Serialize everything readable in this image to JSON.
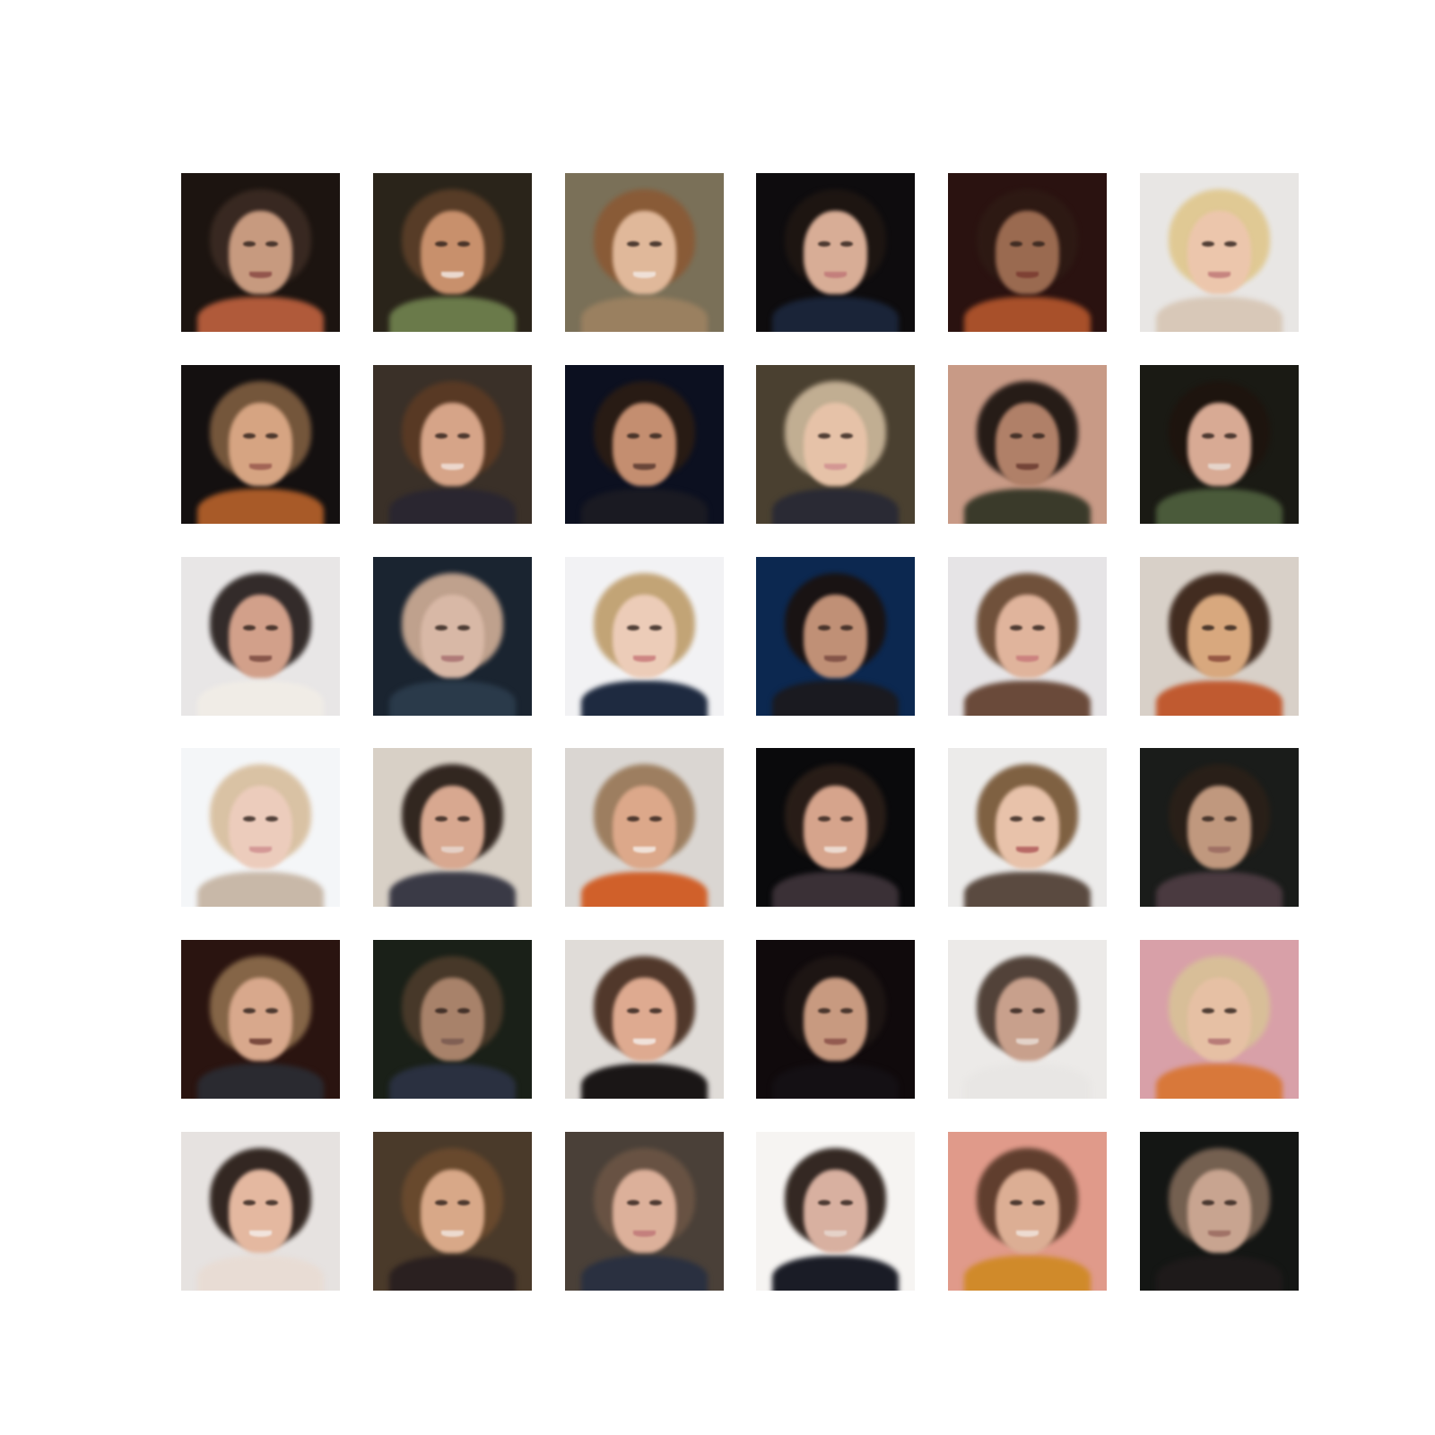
{
  "grid": {
    "rows": 6,
    "cols": 6,
    "tiles": [
      {
        "bg": "#1c1410",
        "hair": "#3a2a22",
        "skin": "#c79a7f",
        "body": "#b05a3a",
        "mouth": "#8a4a44"
      },
      {
        "bg": "#2a241a",
        "hair": "#5a3e28",
        "skin": "#c8906c",
        "body": "#6a7a4a",
        "mouth": "#f0e6e0"
      },
      {
        "bg": "#7a7058",
        "hair": "#8a5a36",
        "skin": "#e0b89a",
        "body": "#9a8060",
        "mouth": "#f2e8e2"
      },
      {
        "bg": "#0e0c0e",
        "hair": "#1e1612",
        "skin": "#d8ad96",
        "body": "#1a2438",
        "mouth": "#c07878"
      },
      {
        "bg": "#2a1210",
        "hair": "#2e1a14",
        "skin": "#9a6a50",
        "body": "#a8502a",
        "mouth": "#7a3a30"
      },
      {
        "bg": "#e8e6e4",
        "hair": "#e0c890",
        "skin": "#ecc6ac",
        "body": "#d8c8b8",
        "mouth": "#c07a78"
      },
      {
        "bg": "#141010",
        "hair": "#7a5a3e",
        "skin": "#d6a482",
        "body": "#a85a28",
        "mouth": "#9a5a4e"
      },
      {
        "bg": "#3a3028",
        "hair": "#5a3a24",
        "skin": "#d6a488",
        "body": "#2a2630",
        "mouth": "#f0e0d8"
      },
      {
        "bg": "#0c1020",
        "hair": "#2a1c14",
        "skin": "#c48e70",
        "body": "#1a1a22",
        "mouth": "#5a3a30"
      },
      {
        "bg": "#4a4030",
        "hair": "#c8b498",
        "skin": "#e6c2a8",
        "body": "#2a2a34",
        "mouth": "#d09090"
      },
      {
        "bg": "#c89a86",
        "hair": "#1e1612",
        "skin": "#b08068",
        "body": "#3a3a2a",
        "mouth": "#6a3a30"
      },
      {
        "bg": "#1a1a14",
        "hair": "#1e140e",
        "skin": "#d8aa94",
        "body": "#4a5a3a",
        "mouth": "#e8dcd4"
      },
      {
        "bg": "#e8e6e6",
        "hair": "#2a2220",
        "skin": "#d2a08a",
        "body": "#f0ece6",
        "mouth": "#7a4a40"
      },
      {
        "bg": "#1a2430",
        "hair": "#c8a892",
        "skin": "#d8b8a6",
        "body": "#2a3a4a",
        "mouth": "#a87070"
      },
      {
        "bg": "#f2f2f4",
        "hair": "#c0a070",
        "skin": "#ecccb8",
        "body": "#1e2a40",
        "mouth": "#c87a7a"
      },
      {
        "bg": "#0c2850",
        "hair": "#1a1210",
        "skin": "#c09076",
        "body": "#1a1a20",
        "mouth": "#7a4a40"
      },
      {
        "bg": "#e6e4e6",
        "hair": "#6a4a32",
        "skin": "#e0b49c",
        "body": "#6a4a3a",
        "mouth": "#c87a7a"
      },
      {
        "bg": "#d8d0c8",
        "hair": "#3a2418",
        "skin": "#d8a87e",
        "body": "#c05a30",
        "mouth": "#8a4a3a"
      },
      {
        "bg": "#f4f6f8",
        "hair": "#d8c0a0",
        "skin": "#ecccbc",
        "body": "#c8b8a8",
        "mouth": "#d09090"
      },
      {
        "bg": "#d8d0c6",
        "hair": "#2a1e18",
        "skin": "#d8a890",
        "body": "#3a3a46",
        "mouth": "#e8d8d0"
      },
      {
        "bg": "#dad6d2",
        "hair": "#9a7a5a",
        "skin": "#dca88a",
        "body": "#d0602a",
        "mouth": "#f4ece6"
      },
      {
        "bg": "#0a0a0c",
        "hair": "#2a1e18",
        "skin": "#d6a48c",
        "body": "#3a3036",
        "mouth": "#f0e4dc"
      },
      {
        "bg": "#ecebea",
        "hair": "#7a5a3a",
        "skin": "#e8c2aa",
        "body": "#5a4a40",
        "mouth": "#b05a5a"
      },
      {
        "bg": "#1a1c1a",
        "hair": "#2a2018",
        "skin": "#c0987e",
        "body": "#4a3a40",
        "mouth": "#9a6a60"
      },
      {
        "bg": "#2a1410",
        "hair": "#8a6a4a",
        "skin": "#d8a88c",
        "body": "#2a2a30",
        "mouth": "#6a3a30"
      },
      {
        "bg": "#1a2018",
        "hair": "#4a3a2a",
        "skin": "#a8826a",
        "body": "#2a3040",
        "mouth": "#7a5a50"
      },
      {
        "bg": "#e0dcd8",
        "hair": "#4a3022",
        "skin": "#deaa90",
        "body": "#1a1616",
        "mouth": "#f4ece8"
      },
      {
        "bg": "#100a0c",
        "hair": "#1e1614",
        "skin": "#c89a80",
        "body": "#141014",
        "mouth": "#8a5048"
      },
      {
        "bg": "#eceae8",
        "hair": "#4a3a30",
        "skin": "#c8a08c",
        "body": "#e8e6e4",
        "mouth": "#e8dcd4"
      },
      {
        "bg": "#d8a0a8",
        "hair": "#d8c098",
        "skin": "#e6c0a4",
        "body": "#d8783a",
        "mouth": "#b07070"
      },
      {
        "bg": "#e6e2e0",
        "hair": "#2a1e18",
        "skin": "#e4b8a0",
        "body": "#e8dcd4",
        "mouth": "#f4ece8"
      },
      {
        "bg": "#4a3a2a",
        "hair": "#6a4a2e",
        "skin": "#d8a888",
        "body": "#2a2020",
        "mouth": "#f0e4dc"
      },
      {
        "bg": "#4a4038",
        "hair": "#6a5444",
        "skin": "#dcb09a",
        "body": "#2a3040",
        "mouth": "#c07878"
      },
      {
        "bg": "#f6f4f2",
        "hair": "#2a1e18",
        "skin": "#d8b0a0",
        "body": "#1a1c26",
        "mouth": "#e8d8d0"
      },
      {
        "bg": "#e09a8a",
        "hair": "#5a3a2a",
        "skin": "#dcae94",
        "body": "#d08a2a",
        "mouth": "#f0e4dc"
      },
      {
        "bg": "#141614",
        "hair": "#7a6454",
        "skin": "#c8a490",
        "body": "#1e1a1a",
        "mouth": "#9a6a60"
      }
    ]
  }
}
